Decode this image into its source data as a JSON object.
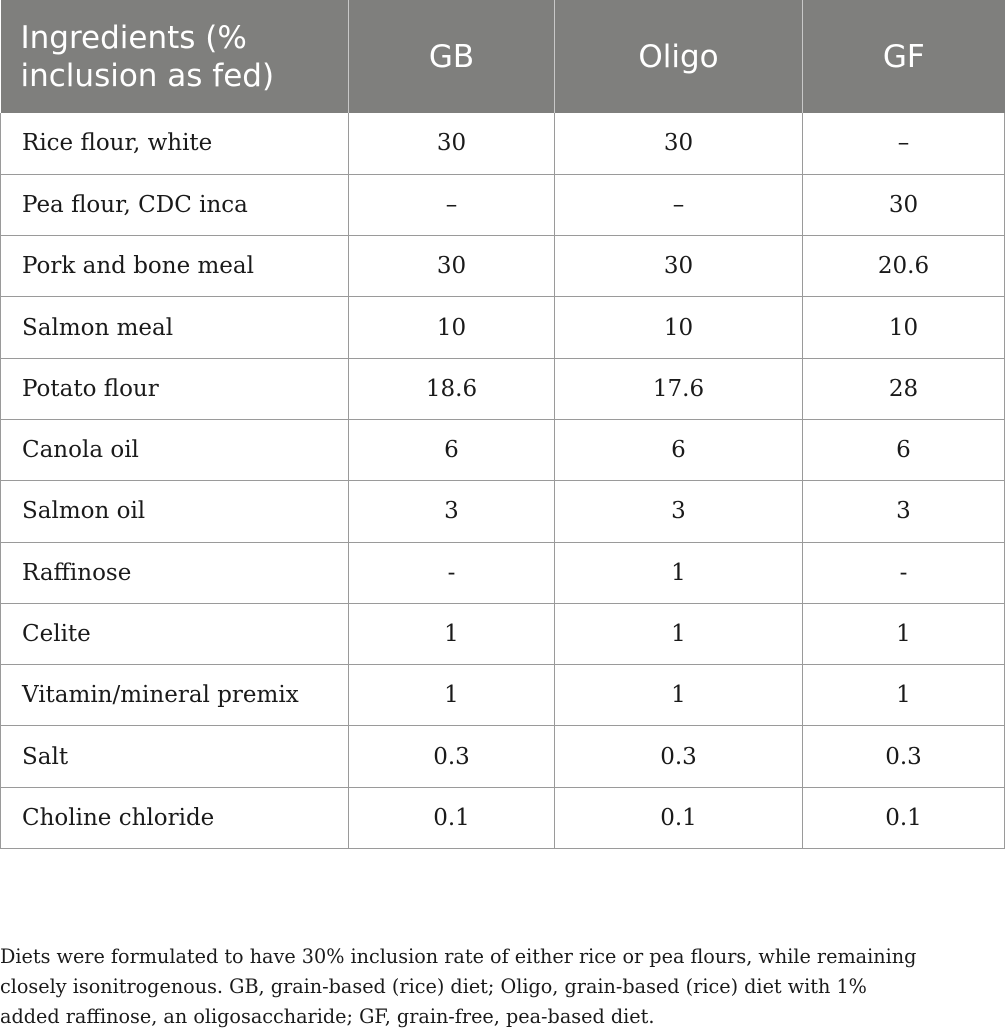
{
  "table": {
    "headers": [
      [
        "Ingredients (%",
        "inclusion as fed)"
      ],
      [
        "GB"
      ],
      [
        "Oligo"
      ],
      [
        "GF"
      ]
    ],
    "rows": [
      [
        "Rice flour, white",
        "30",
        "30",
        "–"
      ],
      [
        "Pea flour, CDC inca",
        "–",
        "–",
        "30"
      ],
      [
        "Pork and bone meal",
        "30",
        "30",
        "20.6"
      ],
      [
        "Salmon meal",
        "10",
        "10",
        "10"
      ],
      [
        "Potato flour",
        "18.6",
        "17.6",
        "28"
      ],
      [
        "Canola oil",
        "6",
        "6",
        "6"
      ],
      [
        "Salmon oil",
        "3",
        "3",
        "3"
      ],
      [
        "Raffinose",
        "-",
        "1",
        "-"
      ],
      [
        "Celite",
        "1",
        "1",
        "1"
      ],
      [
        "Vitamin/mineral premix",
        "1",
        "1",
        "1"
      ],
      [
        "Salt",
        "0.3",
        "0.3",
        "0.3"
      ],
      [
        "Choline chloride",
        "0.1",
        "0.1",
        "0.1"
      ]
    ]
  },
  "footnote": {
    "lines": [
      "Diets were formulated to have 30% inclusion rate of either rice or pea flours, while remaining",
      "closely isonitrogenous. GB, grain-based (rice) diet; Oligo, grain-based (rice) diet with 1%",
      "added raffinose, an oligosaccharide; GF, grain-free, pea-based diet."
    ]
  },
  "colors": {
    "header_background": "#7f7f7d",
    "header_text": "#ffffff",
    "grid_lines": "#9a9a9a"
  }
}
